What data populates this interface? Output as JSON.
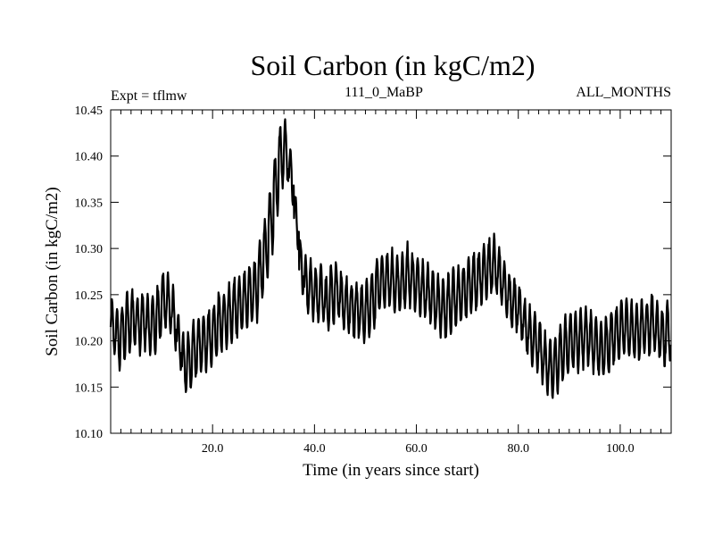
{
  "chart_data": {
    "type": "line",
    "title": "Soil Carbon (in kgC/m2)",
    "subtitle_left": "Expt = tflmw",
    "subtitle_center": "111_0_MaBP",
    "subtitle_right": "ALL_MONTHS",
    "xlabel": "Time (in years since start)",
    "ylabel": "Soil Carbon (in kgC/m2)",
    "xlim": [
      0,
      110
    ],
    "ylim": [
      10.1,
      10.45
    ],
    "x_ticks": [
      20,
      40,
      60,
      80,
      100
    ],
    "x_tick_labels": [
      "20.0",
      "40.0",
      "60.0",
      "80.0",
      "100.0"
    ],
    "y_ticks": [
      10.1,
      10.15,
      10.2,
      10.25,
      10.3,
      10.35,
      10.4,
      10.45
    ],
    "y_tick_labels": [
      "10.10",
      "10.15",
      "10.20",
      "10.25",
      "10.30",
      "10.35",
      "10.40",
      "10.45"
    ],
    "series": [
      {
        "name": "Soil Carbon",
        "description": "monthly values; seasonal cycle of about +/-0.03 around the annual mean below",
        "annual_x": [
          0.5,
          1.5,
          2.5,
          3.5,
          4.5,
          5.5,
          6.5,
          7.5,
          8.5,
          9.5,
          10.5,
          11.5,
          12.5,
          13.5,
          14.5,
          15.5,
          16.5,
          17.5,
          18.5,
          19.5,
          20.5,
          21.5,
          22.5,
          23.5,
          24.5,
          25.5,
          26.5,
          27.5,
          28.5,
          29.5,
          30.5,
          31.5,
          32.5,
          33.5,
          34.5,
          35.5,
          36.5,
          37.5,
          38.5,
          39.5,
          40.5,
          41.5,
          42.5,
          43.5,
          44.5,
          45.5,
          46.5,
          47.5,
          48.5,
          49.5,
          50.5,
          51.5,
          52.5,
          53.5,
          54.5,
          55.5,
          56.5,
          57.5,
          58.5,
          59.5,
          60.5,
          61.5,
          62.5,
          63.5,
          64.5,
          65.5,
          66.5,
          67.5,
          68.5,
          69.5,
          70.5,
          71.5,
          72.5,
          73.5,
          74.5,
          75.5,
          76.5,
          77.5,
          78.5,
          79.5,
          80.5,
          81.5,
          82.5,
          83.5,
          84.5,
          85.5,
          86.5,
          87.5,
          88.5,
          89.5,
          90.5,
          91.5,
          92.5,
          93.5,
          94.5,
          95.5,
          96.5,
          97.5,
          98.5,
          99.5,
          100.5,
          101.5,
          102.5,
          103.5,
          104.5,
          105.5,
          106.5,
          107.5,
          108.5,
          109.5
        ],
        "annual_mean": [
          10.215,
          10.205,
          10.21,
          10.22,
          10.225,
          10.22,
          10.225,
          10.215,
          10.22,
          10.23,
          10.245,
          10.24,
          10.225,
          10.2,
          10.175,
          10.18,
          10.19,
          10.195,
          10.2,
          10.205,
          10.21,
          10.22,
          10.225,
          10.23,
          10.235,
          10.24,
          10.245,
          10.25,
          10.255,
          10.275,
          10.3,
          10.33,
          10.37,
          10.4,
          10.405,
          10.38,
          10.33,
          10.28,
          10.26,
          10.255,
          10.25,
          10.25,
          10.24,
          10.25,
          10.255,
          10.245,
          10.24,
          10.235,
          10.235,
          10.23,
          10.235,
          10.245,
          10.26,
          10.265,
          10.265,
          10.265,
          10.26,
          10.265,
          10.27,
          10.265,
          10.26,
          10.255,
          10.25,
          10.245,
          10.24,
          10.235,
          10.24,
          10.245,
          10.25,
          10.255,
          10.26,
          10.265,
          10.27,
          10.275,
          10.28,
          10.28,
          10.27,
          10.255,
          10.245,
          10.24,
          10.23,
          10.215,
          10.205,
          10.2,
          10.19,
          10.175,
          10.17,
          10.175,
          10.185,
          10.195,
          10.2,
          10.2,
          10.205,
          10.205,
          10.2,
          10.195,
          10.19,
          10.195,
          10.205,
          10.21,
          10.215,
          10.215,
          10.21,
          10.21,
          10.215,
          10.215,
          10.22,
          10.21,
          10.205,
          10.21
        ],
        "seasonal_amplitude": 0.03,
        "points_per_year": 12
      }
    ]
  }
}
